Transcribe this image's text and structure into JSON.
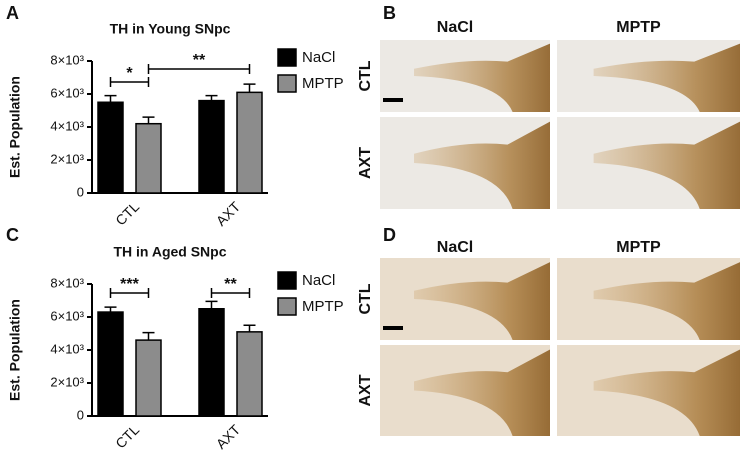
{
  "panel_labels": [
    "A",
    "B",
    "C",
    "D"
  ],
  "chart_data": [
    {
      "type": "bar",
      "title": "TH in Young SNpc",
      "y_label": "Est. Population",
      "categories": [
        "CTL",
        "AXT"
      ],
      "series": [
        {
          "name": "NaCl",
          "color": "#000000",
          "values": [
            5500,
            5600
          ],
          "errors": [
            400,
            300
          ]
        },
        {
          "name": "MPTP",
          "color": "#8c8c8c",
          "values": [
            4200,
            6100
          ],
          "errors": [
            400,
            500
          ]
        }
      ],
      "ylim": [
        0,
        8000
      ],
      "yticks": [
        0,
        {
          "value": 2000,
          "label": "2×10³"
        },
        {
          "value": 4000,
          "label": "4×10³"
        },
        {
          "value": 6000,
          "label": "6×10³"
        },
        {
          "value": 8000,
          "label": "8×10³"
        }
      ],
      "legend": "right",
      "annotations": [
        "*",
        "**"
      ]
    },
    {
      "type": "bar",
      "title": "TH in Aged SNpc",
      "y_label": "Est. Population",
      "categories": [
        "CTL",
        "AXT"
      ],
      "series": [
        {
          "name": "NaCl",
          "color": "#000000",
          "values": [
            6300,
            6500
          ],
          "errors": [
            300,
            450
          ]
        },
        {
          "name": "MPTP",
          "color": "#8c8c8c",
          "values": [
            4600,
            5100
          ],
          "errors": [
            450,
            400
          ]
        }
      ],
      "ylim": [
        0,
        8000
      ],
      "yticks": [
        0,
        {
          "value": 2000,
          "label": "2×10³"
        },
        {
          "value": 4000,
          "label": "4×10³"
        },
        {
          "value": 6000,
          "label": "6×10³"
        },
        {
          "value": 8000,
          "label": "8×10³"
        }
      ],
      "legend": "right",
      "annotations": [
        "***",
        "**"
      ]
    }
  ],
  "micrographs": [
    {
      "columns": [
        "NaCl",
        "MPTP"
      ],
      "rows": [
        "CTL",
        "AXT"
      ]
    },
    {
      "columns": [
        "NaCl",
        "MPTP"
      ],
      "rows": [
        "CTL",
        "AXT"
      ]
    }
  ]
}
